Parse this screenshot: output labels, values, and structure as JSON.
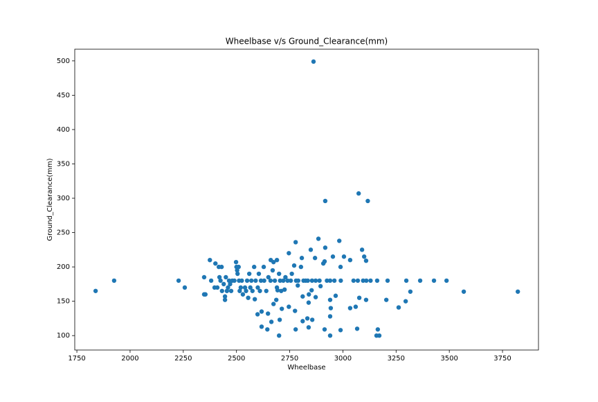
{
  "chart_data": {
    "type": "scatter",
    "title": "Wheelbase v/s Ground_Clearance(mm)",
    "x_label": "Wheelbase",
    "y_label": "Ground_Clearance(mm)",
    "color": "#1f77b4",
    "xlim": [
      1740,
      3919
    ],
    "ylim": [
      79,
      517
    ],
    "xticks": [
      1750,
      2000,
      2250,
      2500,
      2750,
      3000,
      3250,
      3500,
      3750
    ],
    "yticks": [
      100,
      150,
      200,
      250,
      300,
      350,
      400,
      450,
      500
    ],
    "x": [
      1838,
      1925,
      2228,
      2257,
      2348,
      2348,
      2354,
      2375,
      2401,
      2417,
      2430,
      2381,
      2397,
      2410,
      2420,
      2425,
      2432,
      2440,
      2446,
      2446,
      2450,
      2455,
      2460,
      2465,
      2470,
      2475,
      2480,
      2490,
      2498,
      2500,
      2503,
      2505,
      2510,
      2512,
      2515,
      2520,
      2525,
      2530,
      2540,
      2545,
      2550,
      2555,
      2560,
      2565,
      2570,
      2575,
      2583,
      2590,
      2600,
      2605,
      2610,
      2615,
      2628,
      2630,
      2640,
      2650,
      2660,
      2661,
      2670,
      2674,
      2680,
      2690,
      2690,
      2700,
      2705,
      2710,
      2720,
      2730,
      2740,
      2746,
      2755,
      2760,
      2771,
      2778,
      2780,
      2790,
      2803,
      2807,
      2815,
      2825,
      2835,
      2840,
      2849,
      2855,
      2862,
      2869,
      2872,
      2885,
      2890,
      2908,
      2914,
      2917,
      2917,
      2925,
      2940,
      2953,
      2960,
      2983,
      2989,
      2990,
      3005,
      3034,
      3050,
      3074,
      3070,
      3090,
      3095,
      3100,
      3109,
      3110,
      3117,
      3130,
      3161,
      3210,
      3298,
      3363,
      3428,
      3487,
      3568,
      3822,
      3204,
      3262,
      3295,
      3317,
      3158,
      3171,
      3164,
      3067,
      2989,
      2940,
      2914,
      2839,
      2778,
      2700,
      2645,
      2618,
      2664,
      2703,
      2811,
      2833,
      2856,
      2940,
      2599,
      2618,
      2648,
      2674,
      2687,
      2713,
      2746,
      2775,
      2811,
      2839,
      2872,
      2940,
      2943,
      2966,
      3034,
      3060,
      3077,
      3109,
      2693,
      2726,
      2853,
      2895,
      2788,
      2586
    ],
    "values": [
      165,
      180,
      180,
      170,
      185,
      160,
      160,
      210,
      205,
      200,
      200,
      180,
      170,
      170,
      185,
      180,
      165,
      175,
      152,
      157,
      185,
      165,
      170,
      180,
      175,
      165,
      180,
      180,
      207,
      200,
      195,
      190,
      200,
      180,
      165,
      170,
      180,
      160,
      170,
      165,
      180,
      155,
      190,
      170,
      180,
      165,
      200,
      180,
      170,
      190,
      165,
      180,
      200,
      180,
      165,
      185,
      180,
      210,
      195,
      207,
      180,
      210,
      170,
      190,
      180,
      165,
      180,
      185,
      180,
      220,
      180,
      190,
      202,
      236,
      180,
      180,
      200,
      213,
      180,
      180,
      180,
      160,
      225,
      180,
      499,
      213,
      180,
      241,
      180,
      205,
      208,
      228,
      296,
      180,
      180,
      215,
      180,
      238,
      200,
      180,
      215,
      210,
      180,
      307,
      180,
      225,
      180,
      215,
      209,
      180,
      296,
      180,
      180,
      180,
      180,
      180,
      180,
      180,
      164,
      164,
      152,
      141,
      150,
      164,
      100,
      100,
      109,
      110,
      108,
      100,
      109,
      112,
      109,
      100,
      109,
      113,
      120,
      123,
      121,
      125,
      123,
      128,
      131,
      135,
      132,
      146,
      152,
      139,
      142,
      136,
      157,
      148,
      156,
      152,
      140,
      158,
      140,
      142,
      155,
      152,
      166,
      167,
      166,
      172,
      173,
      153
    ]
  }
}
